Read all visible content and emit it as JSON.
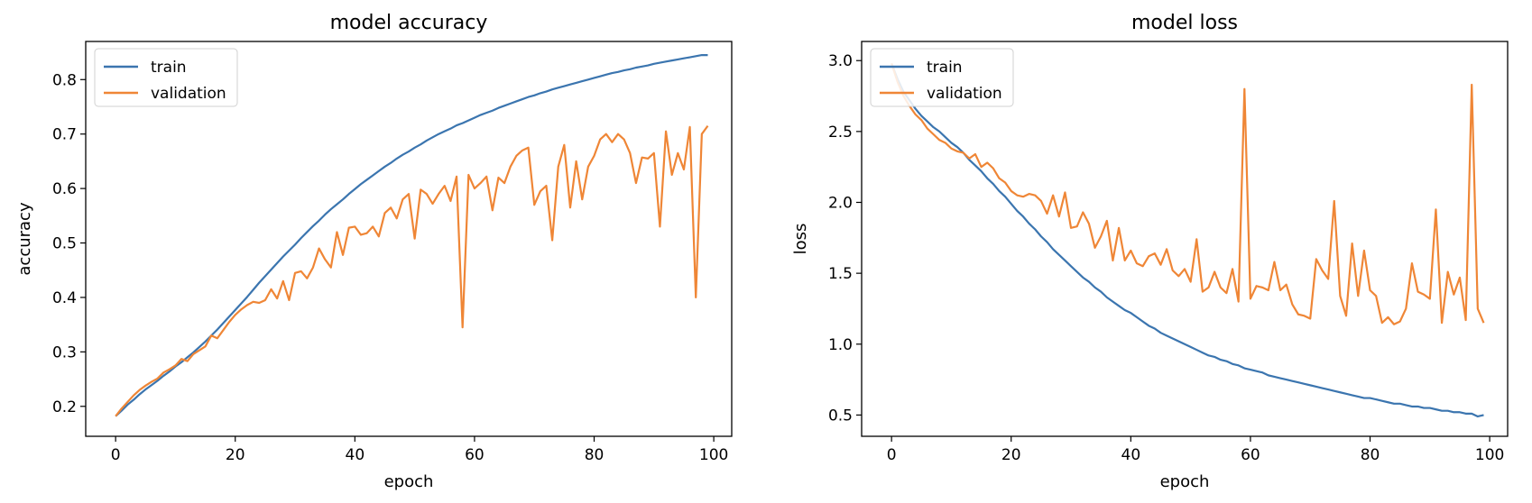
{
  "colors": {
    "train": "#3b75af",
    "validation": "#ef8636"
  },
  "chart_data": [
    {
      "type": "line",
      "title": "model accuracy",
      "xlabel": "epoch",
      "ylabel": "accuracy",
      "xlim": [
        -5,
        103
      ],
      "ylim": [
        0.145,
        0.87
      ],
      "xticks": [
        0,
        20,
        40,
        60,
        80,
        100
      ],
      "xtick_labels": [
        "0",
        "20",
        "40",
        "60",
        "80",
        "100"
      ],
      "yticks": [
        0.2,
        0.3,
        0.4,
        0.5,
        0.6,
        0.7,
        0.8
      ],
      "ytick_labels": [
        "0.2",
        "0.3",
        "0.4",
        "0.5",
        "0.6",
        "0.7",
        "0.8"
      ],
      "legend": {
        "placement": "top-left",
        "entries": [
          "train",
          "validation"
        ]
      },
      "grid": false,
      "x": [
        0,
        1,
        2,
        3,
        4,
        5,
        6,
        7,
        8,
        9,
        10,
        11,
        12,
        13,
        14,
        15,
        16,
        17,
        18,
        19,
        20,
        21,
        22,
        23,
        24,
        25,
        26,
        27,
        28,
        29,
        30,
        31,
        32,
        33,
        34,
        35,
        36,
        37,
        38,
        39,
        40,
        41,
        42,
        43,
        44,
        45,
        46,
        47,
        48,
        49,
        50,
        51,
        52,
        53,
        54,
        55,
        56,
        57,
        58,
        59,
        60,
        61,
        62,
        63,
        64,
        65,
        66,
        67,
        68,
        69,
        70,
        71,
        72,
        73,
        74,
        75,
        76,
        77,
        78,
        79,
        80,
        81,
        82,
        83,
        84,
        85,
        86,
        87,
        88,
        89,
        90,
        91,
        92,
        93,
        94,
        95,
        96,
        97,
        98,
        99
      ],
      "series": [
        {
          "name": "train",
          "values": [
            0.182,
            0.192,
            0.203,
            0.212,
            0.222,
            0.231,
            0.239,
            0.247,
            0.256,
            0.264,
            0.273,
            0.281,
            0.29,
            0.299,
            0.309,
            0.319,
            0.33,
            0.341,
            0.353,
            0.365,
            0.377,
            0.389,
            0.401,
            0.414,
            0.427,
            0.439,
            0.451,
            0.463,
            0.475,
            0.486,
            0.497,
            0.509,
            0.52,
            0.531,
            0.541,
            0.552,
            0.562,
            0.571,
            0.58,
            0.59,
            0.599,
            0.608,
            0.616,
            0.624,
            0.632,
            0.64,
            0.647,
            0.655,
            0.662,
            0.668,
            0.675,
            0.681,
            0.688,
            0.694,
            0.7,
            0.705,
            0.71,
            0.716,
            0.72,
            0.725,
            0.73,
            0.735,
            0.739,
            0.743,
            0.748,
            0.752,
            0.756,
            0.76,
            0.764,
            0.768,
            0.771,
            0.775,
            0.778,
            0.782,
            0.785,
            0.788,
            0.791,
            0.794,
            0.797,
            0.8,
            0.803,
            0.806,
            0.809,
            0.812,
            0.814,
            0.817,
            0.819,
            0.822,
            0.824,
            0.826,
            0.829,
            0.831,
            0.833,
            0.835,
            0.837,
            0.839,
            0.841,
            0.843,
            0.845,
            0.845
          ]
        },
        {
          "name": "validation",
          "values": [
            0.182,
            0.196,
            0.208,
            0.22,
            0.23,
            0.238,
            0.245,
            0.251,
            0.262,
            0.268,
            0.275,
            0.287,
            0.283,
            0.296,
            0.303,
            0.31,
            0.33,
            0.325,
            0.34,
            0.355,
            0.368,
            0.378,
            0.386,
            0.392,
            0.39,
            0.395,
            0.415,
            0.398,
            0.43,
            0.395,
            0.445,
            0.448,
            0.435,
            0.455,
            0.49,
            0.47,
            0.455,
            0.52,
            0.478,
            0.528,
            0.53,
            0.515,
            0.518,
            0.53,
            0.512,
            0.555,
            0.565,
            0.545,
            0.58,
            0.59,
            0.508,
            0.598,
            0.59,
            0.572,
            0.59,
            0.605,
            0.577,
            0.622,
            0.345,
            0.625,
            0.6,
            0.61,
            0.622,
            0.56,
            0.62,
            0.61,
            0.64,
            0.66,
            0.67,
            0.675,
            0.57,
            0.595,
            0.605,
            0.505,
            0.64,
            0.68,
            0.565,
            0.65,
            0.58,
            0.64,
            0.66,
            0.69,
            0.7,
            0.685,
            0.7,
            0.69,
            0.665,
            0.61,
            0.657,
            0.655,
            0.665,
            0.53,
            0.705,
            0.625,
            0.665,
            0.635,
            0.713,
            0.4,
            0.7,
            0.715
          ]
        }
      ]
    },
    {
      "type": "line",
      "title": "model loss",
      "xlabel": "epoch",
      "ylabel": "loss",
      "xlim": [
        -5,
        103
      ],
      "ylim": [
        0.35,
        3.135
      ],
      "xticks": [
        0,
        20,
        40,
        60,
        80,
        100
      ],
      "xtick_labels": [
        "0",
        "20",
        "40",
        "60",
        "80",
        "100"
      ],
      "yticks": [
        0.5,
        1.0,
        1.5,
        2.0,
        2.5,
        3.0
      ],
      "ytick_labels": [
        "0.5",
        "1.0",
        "1.5",
        "2.0",
        "2.5",
        "3.0"
      ],
      "legend": {
        "placement": "top-left",
        "entries": [
          "train",
          "validation"
        ]
      },
      "grid": false,
      "x": [
        0,
        1,
        2,
        3,
        4,
        5,
        6,
        7,
        8,
        9,
        10,
        11,
        12,
        13,
        14,
        15,
        16,
        17,
        18,
        19,
        20,
        21,
        22,
        23,
        24,
        25,
        26,
        27,
        28,
        29,
        30,
        31,
        32,
        33,
        34,
        35,
        36,
        37,
        38,
        39,
        40,
        41,
        42,
        43,
        44,
        45,
        46,
        47,
        48,
        49,
        50,
        51,
        52,
        53,
        54,
        55,
        56,
        57,
        58,
        59,
        60,
        61,
        62,
        63,
        64,
        65,
        66,
        67,
        68,
        69,
        70,
        71,
        72,
        73,
        74,
        75,
        76,
        77,
        78,
        79,
        80,
        81,
        82,
        83,
        84,
        85,
        86,
        87,
        88,
        89,
        90,
        91,
        92,
        93,
        94,
        95,
        96,
        97,
        98,
        99
      ],
      "series": [
        {
          "name": "train",
          "values": [
            2.98,
            2.87,
            2.78,
            2.72,
            2.66,
            2.61,
            2.57,
            2.53,
            2.5,
            2.46,
            2.42,
            2.39,
            2.35,
            2.3,
            2.26,
            2.22,
            2.17,
            2.13,
            2.08,
            2.04,
            1.99,
            1.94,
            1.9,
            1.85,
            1.81,
            1.76,
            1.72,
            1.67,
            1.63,
            1.59,
            1.55,
            1.51,
            1.47,
            1.44,
            1.4,
            1.37,
            1.33,
            1.3,
            1.27,
            1.24,
            1.22,
            1.19,
            1.16,
            1.13,
            1.11,
            1.08,
            1.06,
            1.04,
            1.02,
            1.0,
            0.98,
            0.96,
            0.94,
            0.92,
            0.91,
            0.89,
            0.88,
            0.86,
            0.85,
            0.83,
            0.82,
            0.81,
            0.8,
            0.78,
            0.77,
            0.76,
            0.75,
            0.74,
            0.73,
            0.72,
            0.71,
            0.7,
            0.69,
            0.68,
            0.67,
            0.66,
            0.65,
            0.64,
            0.63,
            0.62,
            0.62,
            0.61,
            0.6,
            0.59,
            0.58,
            0.58,
            0.57,
            0.56,
            0.56,
            0.55,
            0.55,
            0.54,
            0.53,
            0.53,
            0.52,
            0.52,
            0.51,
            0.51,
            0.49,
            0.5
          ]
        },
        {
          "name": "validation",
          "values": [
            2.98,
            2.85,
            2.75,
            2.68,
            2.62,
            2.58,
            2.52,
            2.48,
            2.44,
            2.42,
            2.38,
            2.36,
            2.35,
            2.31,
            2.34,
            2.25,
            2.28,
            2.24,
            2.17,
            2.14,
            2.08,
            2.05,
            2.04,
            2.06,
            2.05,
            2.01,
            1.92,
            2.05,
            1.9,
            2.07,
            1.82,
            1.83,
            1.93,
            1.85,
            1.68,
            1.76,
            1.87,
            1.59,
            1.82,
            1.59,
            1.66,
            1.57,
            1.55,
            1.62,
            1.64,
            1.56,
            1.67,
            1.52,
            1.48,
            1.53,
            1.44,
            1.74,
            1.37,
            1.4,
            1.51,
            1.4,
            1.36,
            1.53,
            1.3,
            2.8,
            1.32,
            1.41,
            1.4,
            1.38,
            1.58,
            1.38,
            1.42,
            1.28,
            1.21,
            1.2,
            1.18,
            1.6,
            1.52,
            1.46,
            2.01,
            1.34,
            1.2,
            1.71,
            1.34,
            1.66,
            1.38,
            1.34,
            1.15,
            1.19,
            1.14,
            1.16,
            1.25,
            1.57,
            1.37,
            1.35,
            1.32,
            1.95,
            1.15,
            1.51,
            1.35,
            1.47,
            1.17,
            2.83,
            1.25,
            1.15
          ]
        }
      ]
    }
  ]
}
